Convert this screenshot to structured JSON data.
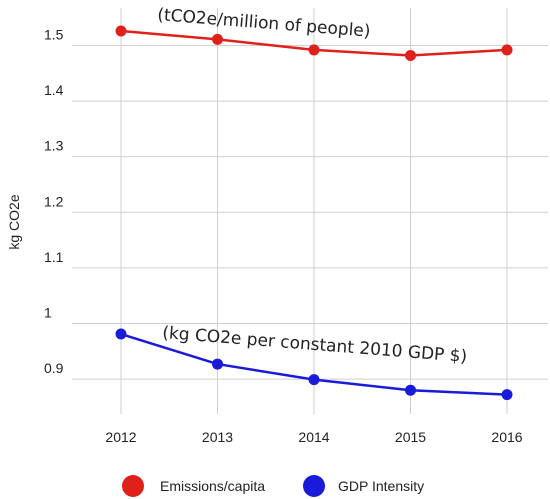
{
  "chart_data": {
    "type": "line",
    "categories": [
      "2012",
      "2013",
      "2014",
      "2015",
      "2016"
    ],
    "ylabel": "kg CO2e",
    "ylim": [
      0.83,
      1.53
    ],
    "yticks": [
      "0.9",
      "1",
      "1.1",
      "1.2",
      "1.3",
      "1.4",
      "1.5"
    ],
    "grid": "horizontal and vertical",
    "legend_position": "bottom",
    "series": [
      {
        "name": "Emissions/capita",
        "color": "#e0201b",
        "values": [
          1.526,
          1.511,
          1.492,
          1.482,
          1.492
        ],
        "annotation": "(tCO2e/million of people)"
      },
      {
        "name": "GDP Intensity",
        "color": "#1a1adb",
        "values": [
          0.981,
          0.927,
          0.899,
          0.88,
          0.872
        ],
        "annotation": "(kg CO2e per constant 2010 GDP $)"
      }
    ]
  }
}
